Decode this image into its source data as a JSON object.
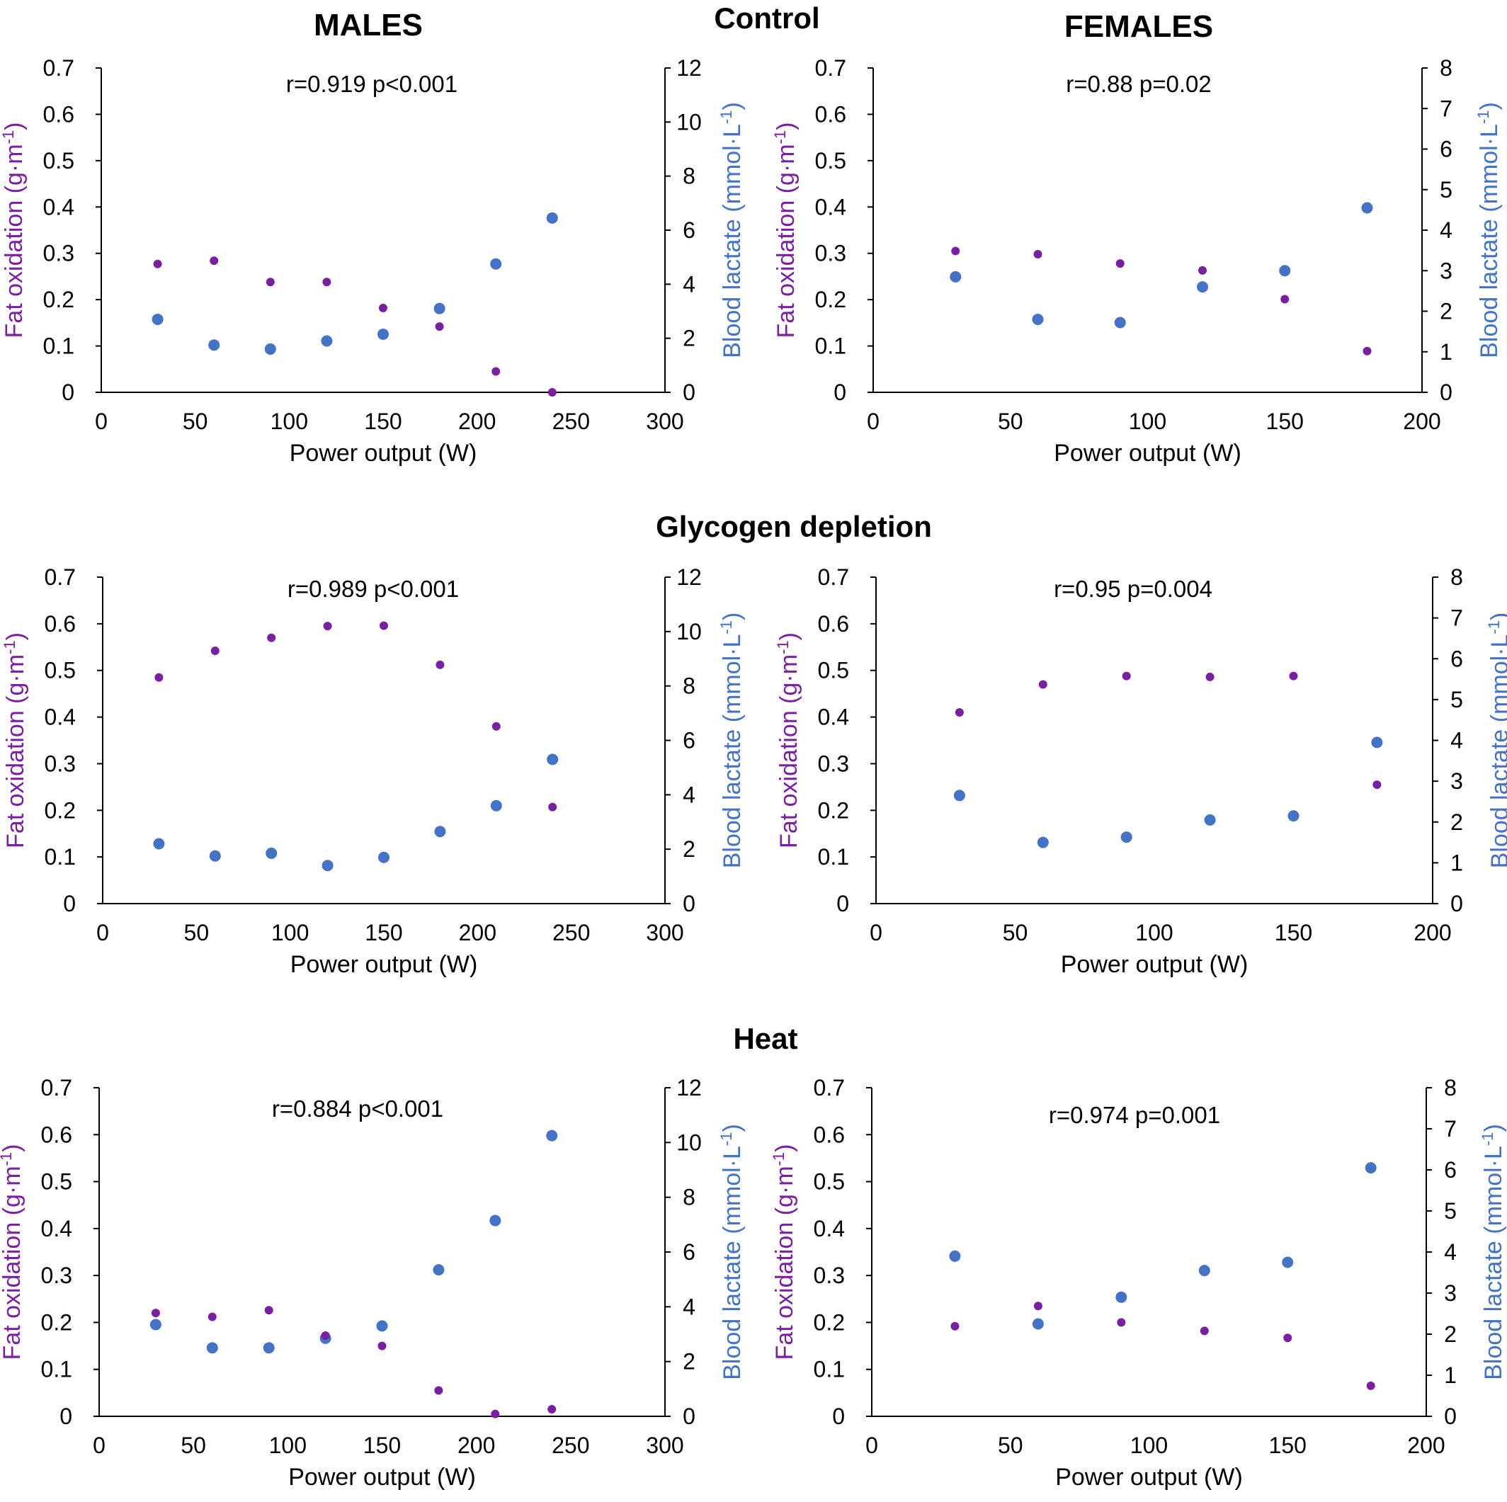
{
  "headers": {
    "males": "MALES",
    "females": "FEMALES",
    "row_titles": [
      "Control",
      "Glycogen depletion",
      "Heat"
    ]
  },
  "colors": {
    "fat_oxidation": "#7B1FA2",
    "blood_lactate": "#4472C4",
    "axis": "#000000"
  },
  "chart_data": [
    {
      "type": "scatter",
      "group": "MALES",
      "condition": "Control",
      "annotation": "r=0.919 p<0.001",
      "xlabel": "Power output (W)",
      "ylabel": "Fat oxidation (g·m",
      "ylabel_sup": "-1",
      "ylabel_end": ")",
      "y2label": "Blood lactate (mmol·L",
      "y2label_sup": "-1",
      "y2label_end": ")",
      "xlim": [
        0,
        300
      ],
      "xticks": [
        0,
        50,
        100,
        150,
        200,
        250,
        300
      ],
      "ylim": [
        0,
        0.7
      ],
      "yticks": [
        "0",
        "0.1",
        "0.2",
        "0.3",
        "0.4",
        "0.5",
        "0.6",
        "0.7"
      ],
      "y2lim": [
        0,
        12
      ],
      "y2ticks": [
        0,
        2,
        4,
        6,
        8,
        10,
        12
      ],
      "x": [
        30,
        60,
        90,
        120,
        150,
        180,
        210,
        240
      ],
      "fat_oxidation": [
        0.277,
        0.284,
        0.238,
        0.238,
        0.182,
        0.142,
        0.045,
        0.0
      ],
      "blood_lactate": [
        2.7,
        1.75,
        1.6,
        1.9,
        2.15,
        3.1,
        4.75,
        6.45
      ]
    },
    {
      "type": "scatter",
      "group": "FEMALES",
      "condition": "Control",
      "annotation": "r=0.88 p=0.02",
      "xlabel": "Power output (W)",
      "ylabel": "Fat oxidation (g·m",
      "ylabel_sup": "-1",
      "ylabel_end": ")",
      "y2label": "Blood lactate (mmol·L",
      "y2label_sup": "-1",
      "y2label_end": ")",
      "xlim": [
        0,
        200
      ],
      "xticks": [
        0,
        50,
        100,
        150,
        200
      ],
      "ylim": [
        0,
        0.7
      ],
      "yticks": [
        "0",
        "0.1",
        "0.2",
        "0.3",
        "0.4",
        "0.5",
        "0.6",
        "0.7"
      ],
      "y2lim": [
        0,
        8
      ],
      "y2ticks": [
        0,
        1,
        2,
        3,
        4,
        5,
        6,
        7,
        8
      ],
      "x": [
        30,
        60,
        90,
        120,
        150,
        180
      ],
      "fat_oxidation": [
        0.305,
        0.298,
        0.278,
        0.263,
        0.201,
        0.089
      ],
      "blood_lactate": [
        2.85,
        1.8,
        1.72,
        2.6,
        3.0,
        4.55
      ]
    },
    {
      "type": "scatter",
      "group": "MALES",
      "condition": "Glycogen depletion",
      "annotation": "r=0.989 p<0.001",
      "xlabel": "Power output (W)",
      "ylabel": "Fat oxidation (g·m",
      "ylabel_sup": "-1",
      "ylabel_end": ")",
      "y2label": "Blood lactate (mmol·L",
      "y2label_sup": "-1",
      "y2label_end": ")",
      "xlim": [
        0,
        300
      ],
      "xticks": [
        0,
        50,
        100,
        150,
        200,
        250,
        300
      ],
      "ylim": [
        0,
        0.7
      ],
      "yticks": [
        "0",
        "0.1",
        "0.2",
        "0.3",
        "0.4",
        "0.5",
        "0.6",
        "0.7"
      ],
      "y2lim": [
        0,
        12
      ],
      "y2ticks": [
        0,
        2,
        4,
        6,
        8,
        10,
        12
      ],
      "x": [
        30,
        60,
        90,
        120,
        150,
        180,
        210,
        240
      ],
      "fat_oxidation": [
        0.485,
        0.542,
        0.57,
        0.595,
        0.596,
        0.512,
        0.38,
        0.207
      ],
      "blood_lactate": [
        2.2,
        1.75,
        1.85,
        1.4,
        1.7,
        2.65,
        3.6,
        5.3
      ]
    },
    {
      "type": "scatter",
      "group": "FEMALES",
      "condition": "Glycogen depletion",
      "annotation": "r=0.95 p=0.004",
      "xlabel": "Power output (W)",
      "ylabel": "Fat oxidation (g·m",
      "ylabel_sup": "-1",
      "ylabel_end": ")",
      "y2label": "Blood lactate (mmol·L",
      "y2label_sup": "-1",
      "y2label_end": ")",
      "xlim": [
        0,
        200
      ],
      "xticks": [
        0,
        50,
        100,
        150,
        200
      ],
      "ylim": [
        0,
        0.7
      ],
      "yticks": [
        "0",
        "0.1",
        "0.2",
        "0.3",
        "0.4",
        "0.5",
        "0.6",
        "0.7"
      ],
      "y2lim": [
        0,
        8
      ],
      "y2ticks": [
        0,
        1,
        2,
        3,
        4,
        5,
        6,
        7,
        8
      ],
      "x": [
        30,
        60,
        90,
        120,
        150,
        180
      ],
      "fat_oxidation": [
        0.41,
        0.47,
        0.488,
        0.486,
        0.488,
        0.255
      ],
      "blood_lactate": [
        2.65,
        1.5,
        1.63,
        2.05,
        2.15,
        3.95
      ]
    },
    {
      "type": "scatter",
      "group": "MALES",
      "condition": "Heat",
      "annotation": "r=0.884 p<0.001",
      "xlabel": "Power output (W)",
      "ylabel": "Fat oxidation (g·m",
      "ylabel_sup": "-1",
      "ylabel_end": ")",
      "y2label": "Blood lactate (mmol·L",
      "y2label_sup": "-1",
      "y2label_end": ")",
      "xlim": [
        0,
        300
      ],
      "xticks": [
        0,
        50,
        100,
        150,
        200,
        250,
        300
      ],
      "ylim": [
        0,
        0.7
      ],
      "yticks": [
        "0",
        "0.1",
        "0.2",
        "0.3",
        "0.4",
        "0.5",
        "0.6",
        "0.7"
      ],
      "y2lim": [
        0,
        12
      ],
      "y2ticks": [
        0,
        2,
        4,
        6,
        8,
        10,
        12
      ],
      "x": [
        30,
        60,
        90,
        120,
        150,
        180,
        210,
        240
      ],
      "fat_oxidation": [
        0.22,
        0.212,
        0.226,
        0.172,
        0.15,
        0.055,
        0.005,
        0.015
      ],
      "blood_lactate": [
        3.35,
        2.5,
        2.5,
        2.85,
        3.3,
        5.35,
        7.15,
        10.25
      ]
    },
    {
      "type": "scatter",
      "group": "FEMALES",
      "condition": "Heat",
      "annotation": "r=0.974 p=0.001",
      "xlabel": "Power output (W)",
      "ylabel": "Fat oxidation (g·m",
      "ylabel_sup": "-1",
      "ylabel_end": ")",
      "y2label": "Blood lactate (mmol·L",
      "y2label_sup": "-1",
      "y2label_end": ")",
      "xlim": [
        0,
        200
      ],
      "xticks": [
        0,
        50,
        100,
        150,
        200
      ],
      "ylim": [
        0,
        0.7
      ],
      "yticks": [
        "0",
        "0.1",
        "0.2",
        "0.3",
        "0.4",
        "0.5",
        "0.6",
        "0.7"
      ],
      "y2lim": [
        0,
        8
      ],
      "y2ticks": [
        0,
        1,
        2,
        3,
        4,
        5,
        6,
        7,
        8
      ],
      "x": [
        30,
        60,
        90,
        120,
        150,
        180
      ],
      "fat_oxidation": [
        0.192,
        0.235,
        0.2,
        0.182,
        0.167,
        0.065
      ],
      "blood_lactate": [
        3.9,
        2.25,
        2.9,
        3.55,
        3.75,
        6.05
      ]
    }
  ]
}
